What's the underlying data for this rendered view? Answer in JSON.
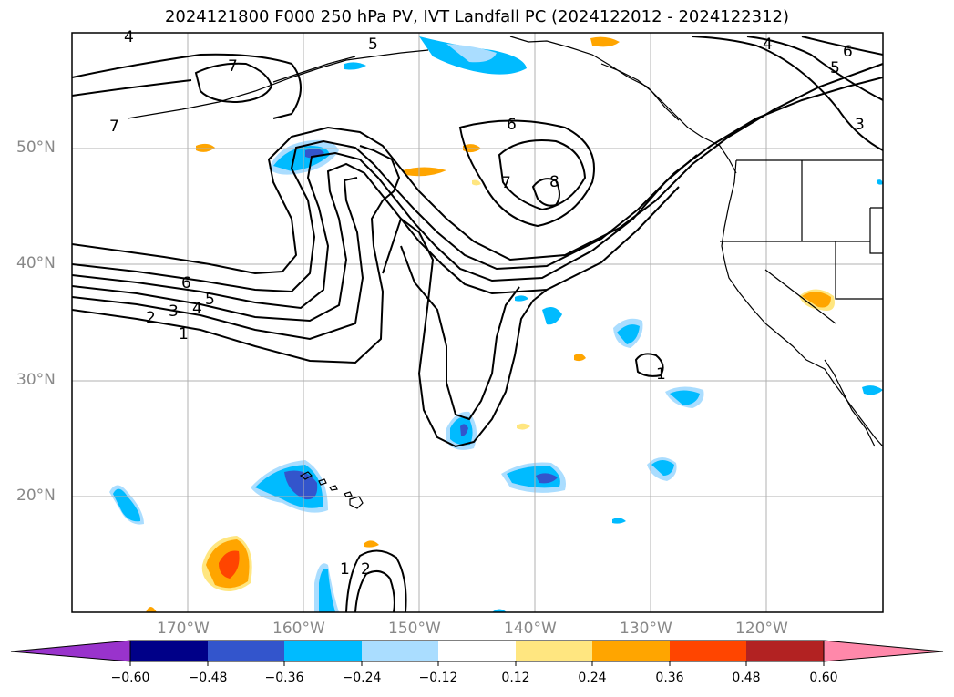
{
  "title": "2024121800 F000 250 hPa PV, IVT Landfall PC (2024122012 - 2024122312)",
  "lat_labels": [
    "50°N",
    "40°N",
    "30°N",
    "20°N"
  ],
  "lon_labels": [
    "170°W",
    "160°W",
    "150°W",
    "140°W",
    "130°W",
    "120°W"
  ],
  "contour_labels": [
    "7",
    "7",
    "6",
    "5",
    "4",
    "3",
    "6",
    "5",
    "4",
    "3",
    "2",
    "1",
    "7",
    "6",
    "8",
    "1",
    "1",
    "2",
    "4",
    "5"
  ],
  "colorbar": {
    "ticks": [
      "−0.60",
      "−0.48",
      "−0.36",
      "−0.24",
      "−0.12",
      "0.12",
      "0.24",
      "0.36",
      "0.48",
      "0.60"
    ],
    "colors": [
      "#9933cc",
      "#000088",
      "#3355cc",
      "#00bbff",
      "#aaddff",
      "#ffffff",
      "#ffe680",
      "#ffa500",
      "#ff4500",
      "#b22222",
      "#ff88aa"
    ]
  }
}
